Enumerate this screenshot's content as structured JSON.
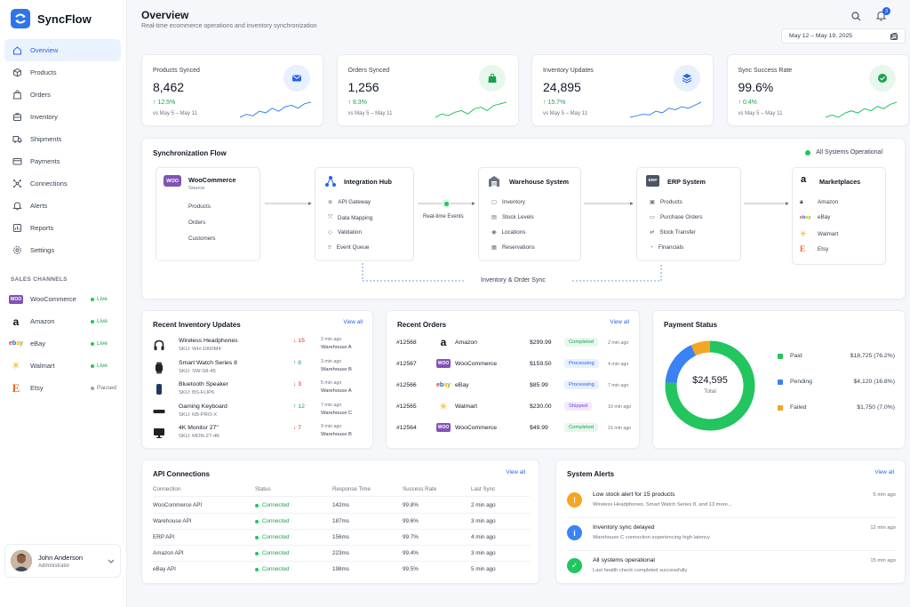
{
  "brand": {
    "name": "SyncFlow"
  },
  "nav": [
    {
      "label": "Overview",
      "icon": "home-icon",
      "active": true
    },
    {
      "label": "Products",
      "icon": "box-icon"
    },
    {
      "label": "Orders",
      "icon": "bag-icon"
    },
    {
      "label": "Inventory",
      "icon": "briefcase-icon"
    },
    {
      "label": "Shipments",
      "icon": "truck-icon"
    },
    {
      "label": "Payments",
      "icon": "card-icon"
    },
    {
      "label": "Connections",
      "icon": "network-icon"
    },
    {
      "label": "Alerts",
      "icon": "bell-icon"
    },
    {
      "label": "Reports",
      "icon": "chart-icon"
    },
    {
      "label": "Settings",
      "icon": "gear-icon"
    }
  ],
  "channels": {
    "label": "SALES CHANNELS",
    "items": [
      {
        "name": "WooCommerce",
        "status": "Live",
        "logo": "WOO"
      },
      {
        "name": "Amazon",
        "status": "Live",
        "logo": "a"
      },
      {
        "name": "eBay",
        "status": "Live",
        "logo": "ebay"
      },
      {
        "name": "Walmart",
        "status": "Live",
        "logo": "✳"
      },
      {
        "name": "Etsy",
        "status": "Paused",
        "logo": "E"
      }
    ]
  },
  "user": {
    "name": "John Anderson",
    "role": "Administrator"
  },
  "header": {
    "title": "Overview",
    "subtitle": "Real-time ecommerce operations and inventory synchronization",
    "date_range": "May 12 – May 19, 2025",
    "notification_count": "3"
  },
  "kpis": [
    {
      "label": "Products Synced",
      "value": "8,462",
      "change": "↑ 12.5%",
      "compare": "vs May 5 – May 11",
      "icon": "envelope-icon",
      "icon_bg": "#e8f0fe",
      "icon_color": "#2563eb",
      "spark_color": "#3b82f6",
      "trend": [
        3,
        4,
        3.5,
        5,
        4.5,
        6,
        5,
        6.5,
        7,
        6,
        7.5,
        8
      ]
    },
    {
      "label": "Orders Synced",
      "value": "1,256",
      "change": "↑ 8.3%",
      "compare": "vs May 5 – May 11",
      "icon": "bag-icon",
      "icon_bg": "#e7f7ee",
      "icon_color": "#16a34a",
      "spark_color": "#22c55e",
      "trend": [
        3,
        4,
        3.5,
        4.5,
        5,
        4,
        5.5,
        6,
        5,
        6.5,
        7,
        7.5
      ]
    },
    {
      "label": "Inventory Updates",
      "value": "24,895",
      "change": "↑ 15.7%",
      "compare": "vs May 5 – May 11",
      "icon": "layers-icon",
      "icon_bg": "#e8f0fe",
      "icon_color": "#2563eb",
      "spark_color": "#3b82f6",
      "trend": [
        3,
        3.5,
        4,
        3.8,
        5,
        4.5,
        6,
        5.5,
        6.5,
        6,
        7,
        8
      ]
    },
    {
      "label": "Sync Success Rate",
      "value": "99.6%",
      "change": "↑ 0.4%",
      "compare": "vs May 5 – May 11",
      "icon": "check-icon",
      "icon_bg": "#e7f7ee",
      "icon_color": "#16a34a",
      "spark_color": "#22c55e",
      "trend": [
        4,
        4.5,
        4,
        5,
        5.5,
        5,
        6,
        5.5,
        6.5,
        6,
        7,
        7.5
      ]
    }
  ],
  "flow": {
    "title": "Synchronization Flow",
    "status": "All Systems Operational",
    "woo": {
      "title": "WooCommerce",
      "subtitle": "Source",
      "items": [
        "Products",
        "Orders",
        "Customers"
      ]
    },
    "hub": {
      "title": "Integration Hub",
      "items": [
        "API Gateway",
        "Data Mapping",
        "Validation",
        "Event Queue"
      ]
    },
    "events_label": "Real-time Events",
    "warehouse": {
      "title": "Warehouse System",
      "items": [
        "Inventory",
        "Stock Levels",
        "Locations",
        "Reservations"
      ]
    },
    "erp": {
      "title": "ERP System",
      "items": [
        "Products",
        "Purchase Orders",
        "Stock Transfer",
        "Financials"
      ]
    },
    "marketplaces": {
      "title": "Marketplaces",
      "items": [
        "Amazon",
        "eBay",
        "Walmart",
        "Etsy"
      ]
    },
    "sync_label": "Inventory & Order Sync"
  },
  "inventory": {
    "title": "Recent Inventory Updates",
    "view_all": "View all",
    "rows": [
      {
        "name": "Wireless Headphones",
        "sku": "SKU: WH-1000M4",
        "change": "↓ 15",
        "dir": "down",
        "time": "2 min ago",
        "loc": "Warehouse A"
      },
      {
        "name": "Smart Watch Series 8",
        "sku": "SKU: SW-S8-45",
        "change": "↑ 8",
        "dir": "up",
        "time": "3 min ago",
        "loc": "Warehouse B"
      },
      {
        "name": "Bluetooth Speaker",
        "sku": "SKU: BS-FLIP6",
        "change": "↓ 3",
        "dir": "down",
        "time": "5 min ago",
        "loc": "Warehouse A"
      },
      {
        "name": "Gaming Keyboard",
        "sku": "SKU: KB-PRO-X",
        "change": "↑ 12",
        "dir": "up",
        "time": "7 min ago",
        "loc": "Warehouse C"
      },
      {
        "name": "4K Monitor 27\"",
        "sku": "SKU: MON-27-4K",
        "change": "↓ 7",
        "dir": "down",
        "time": "9 min ago",
        "loc": "Warehouse B"
      }
    ]
  },
  "orders": {
    "title": "Recent Orders",
    "view_all": "View all",
    "rows": [
      {
        "id": "#12568",
        "channel": "Amazon",
        "logo": "a",
        "amount": "$299.99",
        "status": "Completed",
        "time": "2 min ago"
      },
      {
        "id": "#12567",
        "channel": "WooCommerce",
        "logo": "WOO",
        "amount": "$159.50",
        "status": "Processing",
        "time": "4 min ago"
      },
      {
        "id": "#12566",
        "channel": "eBay",
        "logo": "ebay",
        "amount": "$85.99",
        "status": "Processing",
        "time": "7 min ago"
      },
      {
        "id": "#12565",
        "channel": "Walmart",
        "logo": "✳",
        "amount": "$230.00",
        "status": "Shipped",
        "time": "10 min ago"
      },
      {
        "id": "#12564",
        "channel": "WooCommerce",
        "logo": "WOO",
        "amount": "$49.99",
        "status": "Completed",
        "time": "15 min ago"
      }
    ]
  },
  "payments": {
    "title": "Payment Status",
    "total": "$24,595",
    "total_label": "Total",
    "items": [
      {
        "label": "Paid",
        "value": "$18,725 (76.2%)",
        "pct": 76.2,
        "color": "#22c55e"
      },
      {
        "label": "Pending",
        "value": "$4,120 (16.8%)",
        "pct": 16.8,
        "color": "#3b82f6"
      },
      {
        "label": "Failed",
        "value": "$1,750 (7.0%)",
        "pct": 7.0,
        "color": "#f5a524"
      }
    ]
  },
  "api": {
    "title": "API Connections",
    "view_all": "View all",
    "headers": [
      "Connection",
      "Status",
      "Response Time",
      "Success Rate",
      "Last Sync"
    ],
    "rows": [
      {
        "name": "WooCommerce API",
        "status": "Connected",
        "rt": "142ms",
        "sr": "99.8%",
        "last": "2 min ago"
      },
      {
        "name": "Warehouse API",
        "status": "Connected",
        "rt": "187ms",
        "sr": "99.6%",
        "last": "3 min ago"
      },
      {
        "name": "ERP API",
        "status": "Connected",
        "rt": "156ms",
        "sr": "99.7%",
        "last": "4 min ago"
      },
      {
        "name": "Amazon API",
        "status": "Connected",
        "rt": "223ms",
        "sr": "99.4%",
        "last": "3 min ago"
      },
      {
        "name": "eBay API",
        "status": "Connected",
        "rt": "198ms",
        "sr": "99.5%",
        "last": "5 min ago"
      }
    ]
  },
  "alerts": {
    "title": "System Alerts",
    "view_all": "View all",
    "items": [
      {
        "title": "Low stock alert for 15 products",
        "desc": "Wireless Headphones, Smart Watch Series 8, and 13 more...",
        "time": "5 min ago",
        "color": "#f5a524",
        "icon": "warning-icon",
        "glyph": "!"
      },
      {
        "title": "Inventory sync delayed",
        "desc": "Warehouse C connection experiencing high latency",
        "time": "12 min ago",
        "color": "#3b82f6",
        "icon": "info-icon",
        "glyph": "i"
      },
      {
        "title": "All systems operational",
        "desc": "Last health check completed successfully",
        "time": "15 min ago",
        "color": "#22c55e",
        "icon": "check-icon",
        "glyph": "✓"
      }
    ]
  }
}
